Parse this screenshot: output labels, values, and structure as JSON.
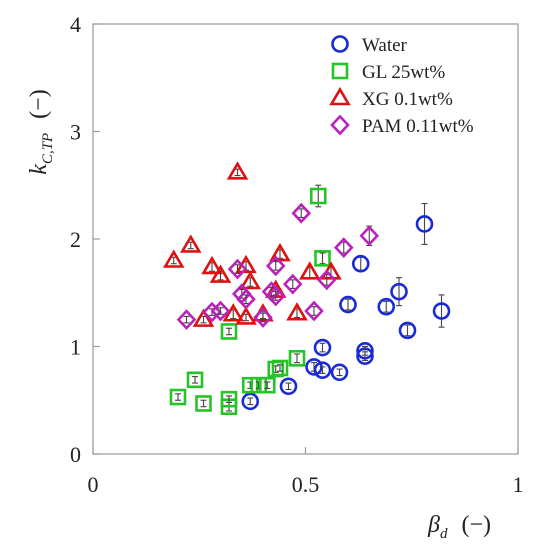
{
  "chart_data": {
    "type": "scatter",
    "xlabel": "βd",
    "xlabel_main": "β",
    "xlabel_sub": "d",
    "xlabel_unit": "(−)",
    "ylabel": "kC,TP",
    "ylabel_main": "k",
    "ylabel_sub": "C,TP",
    "ylabel_unit": "(−)",
    "xlim": [
      0,
      1
    ],
    "ylim": [
      0,
      4
    ],
    "xticks": [
      0,
      0.5,
      1
    ],
    "yticks": [
      0,
      1,
      2,
      3,
      4
    ],
    "xtick_labels": [
      "0",
      "0.5",
      "1"
    ],
    "ytick_labels": [
      "0",
      "1",
      "2",
      "3",
      "4"
    ],
    "grid": false,
    "legend_position": "top-right",
    "series": [
      {
        "name": "Water",
        "marker": "circle",
        "color": "#1a2ad6",
        "points": [
          [
            0.37,
            0.49,
            0.03
          ],
          [
            0.46,
            0.63,
            0.03
          ],
          [
            0.52,
            0.81,
            0.04
          ],
          [
            0.54,
            0.78,
            0.03
          ],
          [
            0.54,
            0.99,
            0.04
          ],
          [
            0.58,
            0.76,
            0.03
          ],
          [
            0.6,
            1.39,
            0.05
          ],
          [
            0.63,
            1.77,
            0.06
          ],
          [
            0.64,
            0.91,
            0.04
          ],
          [
            0.64,
            0.96,
            0.04
          ],
          [
            0.69,
            1.37,
            0.05
          ],
          [
            0.72,
            1.51,
            0.13
          ],
          [
            0.74,
            1.15,
            0.05
          ],
          [
            0.78,
            2.14,
            0.19
          ],
          [
            0.82,
            1.33,
            0.15
          ]
        ]
      },
      {
        "name": "GL 25wt%",
        "marker": "square",
        "color": "#27c427",
        "points": [
          [
            0.2,
            0.53,
            0.03
          ],
          [
            0.24,
            0.69,
            0.03
          ],
          [
            0.26,
            0.47,
            0.03
          ],
          [
            0.32,
            0.44,
            0.04
          ],
          [
            0.32,
            0.51,
            0.03
          ],
          [
            0.32,
            1.14,
            0.03
          ],
          [
            0.37,
            0.64,
            0.03
          ],
          [
            0.39,
            0.64,
            0.03
          ],
          [
            0.41,
            0.64,
            0.03
          ],
          [
            0.43,
            0.79,
            0.03
          ],
          [
            0.44,
            0.8,
            0.03
          ],
          [
            0.48,
            0.89,
            0.04
          ],
          [
            0.54,
            1.82,
            0.05
          ],
          [
            0.53,
            2.4,
            0.1
          ]
        ]
      },
      {
        "name": "XG 0.1wt%",
        "marker": "triangle",
        "color": "#e01010",
        "points": [
          [
            0.19,
            1.8,
            0.03
          ],
          [
            0.23,
            1.94,
            0.03
          ],
          [
            0.26,
            1.25,
            0.03
          ],
          [
            0.28,
            1.74,
            0.04
          ],
          [
            0.3,
            1.66,
            0.04
          ],
          [
            0.33,
            1.3,
            0.04
          ],
          [
            0.34,
            2.62,
            0.03
          ],
          [
            0.36,
            1.75,
            0.04
          ],
          [
            0.36,
            1.27,
            0.03
          ],
          [
            0.37,
            1.6,
            0.04
          ],
          [
            0.4,
            1.3,
            0.04
          ],
          [
            0.43,
            1.52,
            0.04
          ],
          [
            0.44,
            1.86,
            0.04
          ],
          [
            0.48,
            1.31,
            0.04
          ],
          [
            0.51,
            1.69,
            0.05
          ],
          [
            0.56,
            1.69,
            0.05
          ]
        ]
      },
      {
        "name": "PAM 0.11wt%",
        "marker": "diamond",
        "color": "#bb22bb",
        "points": [
          [
            0.22,
            1.25,
            0.03
          ],
          [
            0.28,
            1.32,
            0.03
          ],
          [
            0.3,
            1.33,
            0.03
          ],
          [
            0.34,
            1.72,
            0.04
          ],
          [
            0.35,
            1.49,
            0.04
          ],
          [
            0.36,
            1.44,
            0.04
          ],
          [
            0.4,
            1.27,
            0.04
          ],
          [
            0.42,
            1.51,
            0.04
          ],
          [
            0.43,
            1.75,
            0.04
          ],
          [
            0.43,
            1.47,
            0.04
          ],
          [
            0.47,
            1.58,
            0.04
          ],
          [
            0.49,
            2.24,
            0.04
          ],
          [
            0.52,
            1.33,
            0.04
          ],
          [
            0.55,
            1.62,
            0.05
          ],
          [
            0.59,
            1.92,
            0.05
          ],
          [
            0.65,
            2.03,
            0.09
          ]
        ]
      }
    ]
  }
}
